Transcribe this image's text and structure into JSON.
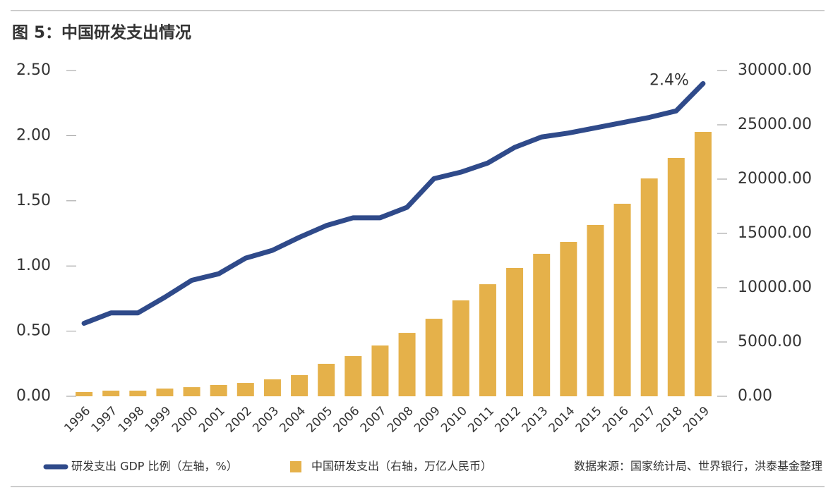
{
  "chart_data": {
    "type": "bar-line",
    "title": "图 5：中国研发支出情况",
    "source": "数据来源：国家统计局、世界银行，洪泰基金整理",
    "annotation": "2.4%",
    "categories": [
      "1996",
      "1997",
      "1998",
      "1999",
      "2000",
      "2001",
      "2002",
      "2003",
      "2004",
      "2005",
      "2006",
      "2007",
      "2008",
      "2009",
      "2010",
      "2011",
      "2012",
      "2013",
      "2014",
      "2015",
      "2016",
      "2017",
      "2018",
      "2019"
    ],
    "series": [
      {
        "name": "研发支出 GDP 比例（左轴，%）",
        "type": "line",
        "color": "#2f4a8a",
        "axis": "y",
        "values": [
          0.56,
          0.64,
          0.64,
          0.76,
          0.89,
          0.94,
          1.06,
          1.12,
          1.22,
          1.31,
          1.37,
          1.37,
          1.45,
          1.67,
          1.72,
          1.79,
          1.91,
          1.99,
          2.02,
          2.06,
          2.1,
          2.14,
          2.19,
          2.4
        ]
      },
      {
        "name": "中国研发支出（右轴，万亿人民币）",
        "type": "bar",
        "color": "#e5b14a",
        "axis": "y2",
        "values": [
          390,
          520,
          520,
          710,
          840,
          1040,
          1230,
          1560,
          1950,
          2990,
          3700,
          4680,
          5840,
          7140,
          8830,
          10320,
          11820,
          13120,
          14220,
          15780,
          17730,
          20060,
          21950,
          24350
        ]
      }
    ],
    "ylim": [
      0,
      2.5
    ],
    "yticks": [
      {
        "value": 0,
        "label": "0.00"
      },
      {
        "value": 0.5,
        "label": "0.50"
      },
      {
        "value": 1,
        "label": "1.00"
      },
      {
        "value": 1.5,
        "label": "1.50"
      },
      {
        "value": 2,
        "label": "2.00"
      },
      {
        "value": 2.5,
        "label": "2.50"
      }
    ],
    "y2lim": [
      0,
      30000
    ],
    "y2ticks": [
      {
        "value": 0,
        "label": "0.00"
      },
      {
        "value": 5000,
        "label": "5000.00"
      },
      {
        "value": 10000,
        "label": "10000.00"
      },
      {
        "value": 15000,
        "label": "15000.00"
      },
      {
        "value": 20000,
        "label": "20000.00"
      },
      {
        "value": 25000,
        "label": "25000.00"
      },
      {
        "value": 30000,
        "label": "30000.00"
      }
    ]
  }
}
